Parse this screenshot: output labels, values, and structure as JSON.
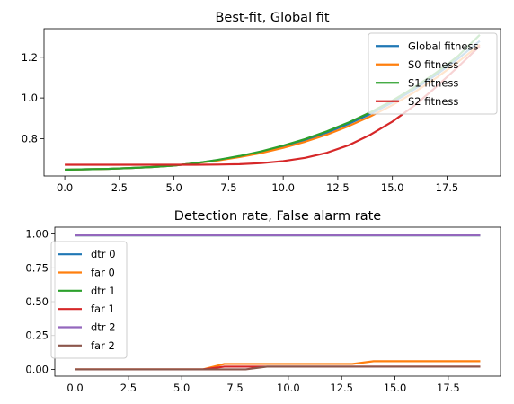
{
  "chart_data": [
    {
      "type": "line",
      "title": "Best-fit, Global fit",
      "xlabel": "",
      "ylabel": "",
      "xlim": [
        -0.95,
        19.95
      ],
      "ylim": [
        0.617,
        1.34
      ],
      "xticks": [
        "0.0",
        "2.5",
        "5.0",
        "7.5",
        "10.0",
        "12.5",
        "15.0",
        "17.5"
      ],
      "xtick_values": [
        0,
        2.5,
        5,
        7.5,
        10,
        12.5,
        15,
        17.5
      ],
      "yticks": [
        "0.8",
        "1.0",
        "1.2"
      ],
      "ytick_values": [
        0.8,
        1.0,
        1.2
      ],
      "grid": false,
      "legend": "upper-right",
      "x": [
        0,
        1,
        2,
        3,
        4,
        5,
        6,
        7,
        8,
        9,
        10,
        11,
        12,
        13,
        14,
        15,
        16,
        17,
        18,
        19
      ],
      "series": [
        {
          "name": "Global fitness",
          "color": "#1f77b4",
          "values": [
            0.648,
            0.65,
            0.652,
            0.656,
            0.661,
            0.668,
            0.68,
            0.695,
            0.713,
            0.735,
            0.762,
            0.793,
            0.83,
            0.873,
            0.922,
            0.978,
            1.042,
            1.113,
            1.192,
            1.28
          ]
        },
        {
          "name": "S0 fitness",
          "color": "#ff7f0e",
          "values": [
            0.648,
            0.65,
            0.652,
            0.656,
            0.661,
            0.668,
            0.68,
            0.693,
            0.71,
            0.73,
            0.755,
            0.785,
            0.82,
            0.862,
            0.91,
            0.965,
            1.028,
            1.098,
            1.176,
            1.262
          ]
        },
        {
          "name": "S1 fitness",
          "color": "#2ca02c",
          "values": [
            0.648,
            0.65,
            0.652,
            0.656,
            0.661,
            0.668,
            0.68,
            0.696,
            0.715,
            0.738,
            0.766,
            0.798,
            0.836,
            0.88,
            0.93,
            0.987,
            1.052,
            1.124,
            1.205,
            1.31
          ]
        },
        {
          "name": "S2 fitness",
          "color": "#d62728",
          "values": [
            0.672,
            0.672,
            0.672,
            0.672,
            0.672,
            0.672,
            0.672,
            0.673,
            0.675,
            0.68,
            0.69,
            0.706,
            0.731,
            0.768,
            0.82,
            0.884,
            0.962,
            1.054,
            1.152,
            1.255
          ]
        }
      ]
    },
    {
      "type": "line",
      "title": "Detection rate, False alarm rate",
      "xlabel": "",
      "ylabel": "",
      "xlim": [
        -0.95,
        19.95
      ],
      "ylim": [
        -0.05,
        1.05
      ],
      "xticks": [
        "0.0",
        "2.5",
        "5.0",
        "7.5",
        "10.0",
        "12.5",
        "15.0",
        "17.5"
      ],
      "xtick_values": [
        0,
        2.5,
        5,
        7.5,
        10,
        12.5,
        15,
        17.5
      ],
      "yticks": [
        "0.00",
        "0.25",
        "0.50",
        "0.75",
        "1.00"
      ],
      "ytick_values": [
        0,
        0.25,
        0.5,
        0.75,
        1.0
      ],
      "grid": false,
      "legend": "upper-left",
      "x": [
        0,
        1,
        2,
        3,
        4,
        5,
        6,
        7,
        8,
        9,
        10,
        11,
        12,
        13,
        14,
        15,
        16,
        17,
        18,
        19
      ],
      "series": [
        {
          "name": "dtr 0",
          "color": "#1f77b4",
          "values": [
            0.99,
            0.99,
            0.99,
            0.99,
            0.99,
            0.99,
            0.99,
            0.99,
            0.99,
            0.99,
            0.99,
            0.99,
            0.99,
            0.99,
            0.99,
            0.99,
            0.99,
            0.99,
            0.99,
            0.99
          ]
        },
        {
          "name": "far 0",
          "color": "#ff7f0e",
          "values": [
            0,
            0,
            0,
            0,
            0,
            0,
            0,
            0.04,
            0.04,
            0.04,
            0.04,
            0.04,
            0.04,
            0.04,
            0.06,
            0.06,
            0.06,
            0.06,
            0.06,
            0.06
          ]
        },
        {
          "name": "dtr 1",
          "color": "#2ca02c",
          "values": [
            0.99,
            0.99,
            0.99,
            0.99,
            0.99,
            0.99,
            0.99,
            0.99,
            0.99,
            0.99,
            0.99,
            0.99,
            0.99,
            0.99,
            0.99,
            0.99,
            0.99,
            0.99,
            0.99,
            0.99
          ]
        },
        {
          "name": "far 1",
          "color": "#d62728",
          "values": [
            0,
            0,
            0,
            0,
            0,
            0,
            0,
            0.02,
            0.02,
            0.02,
            0.02,
            0.02,
            0.02,
            0.02,
            0.02,
            0.02,
            0.02,
            0.02,
            0.02,
            0.02
          ]
        },
        {
          "name": "dtr 2",
          "color": "#9467bd",
          "values": [
            0.99,
            0.99,
            0.99,
            0.99,
            0.99,
            0.99,
            0.99,
            0.99,
            0.99,
            0.99,
            0.99,
            0.99,
            0.99,
            0.99,
            0.99,
            0.99,
            0.99,
            0.99,
            0.99,
            0.99
          ]
        },
        {
          "name": "far 2",
          "color": "#8c564b",
          "values": [
            0,
            0,
            0,
            0,
            0,
            0,
            0,
            0,
            0,
            0.02,
            0.02,
            0.02,
            0.02,
            0.02,
            0.02,
            0.02,
            0.02,
            0.02,
            0.02,
            0.02
          ]
        }
      ]
    }
  ]
}
